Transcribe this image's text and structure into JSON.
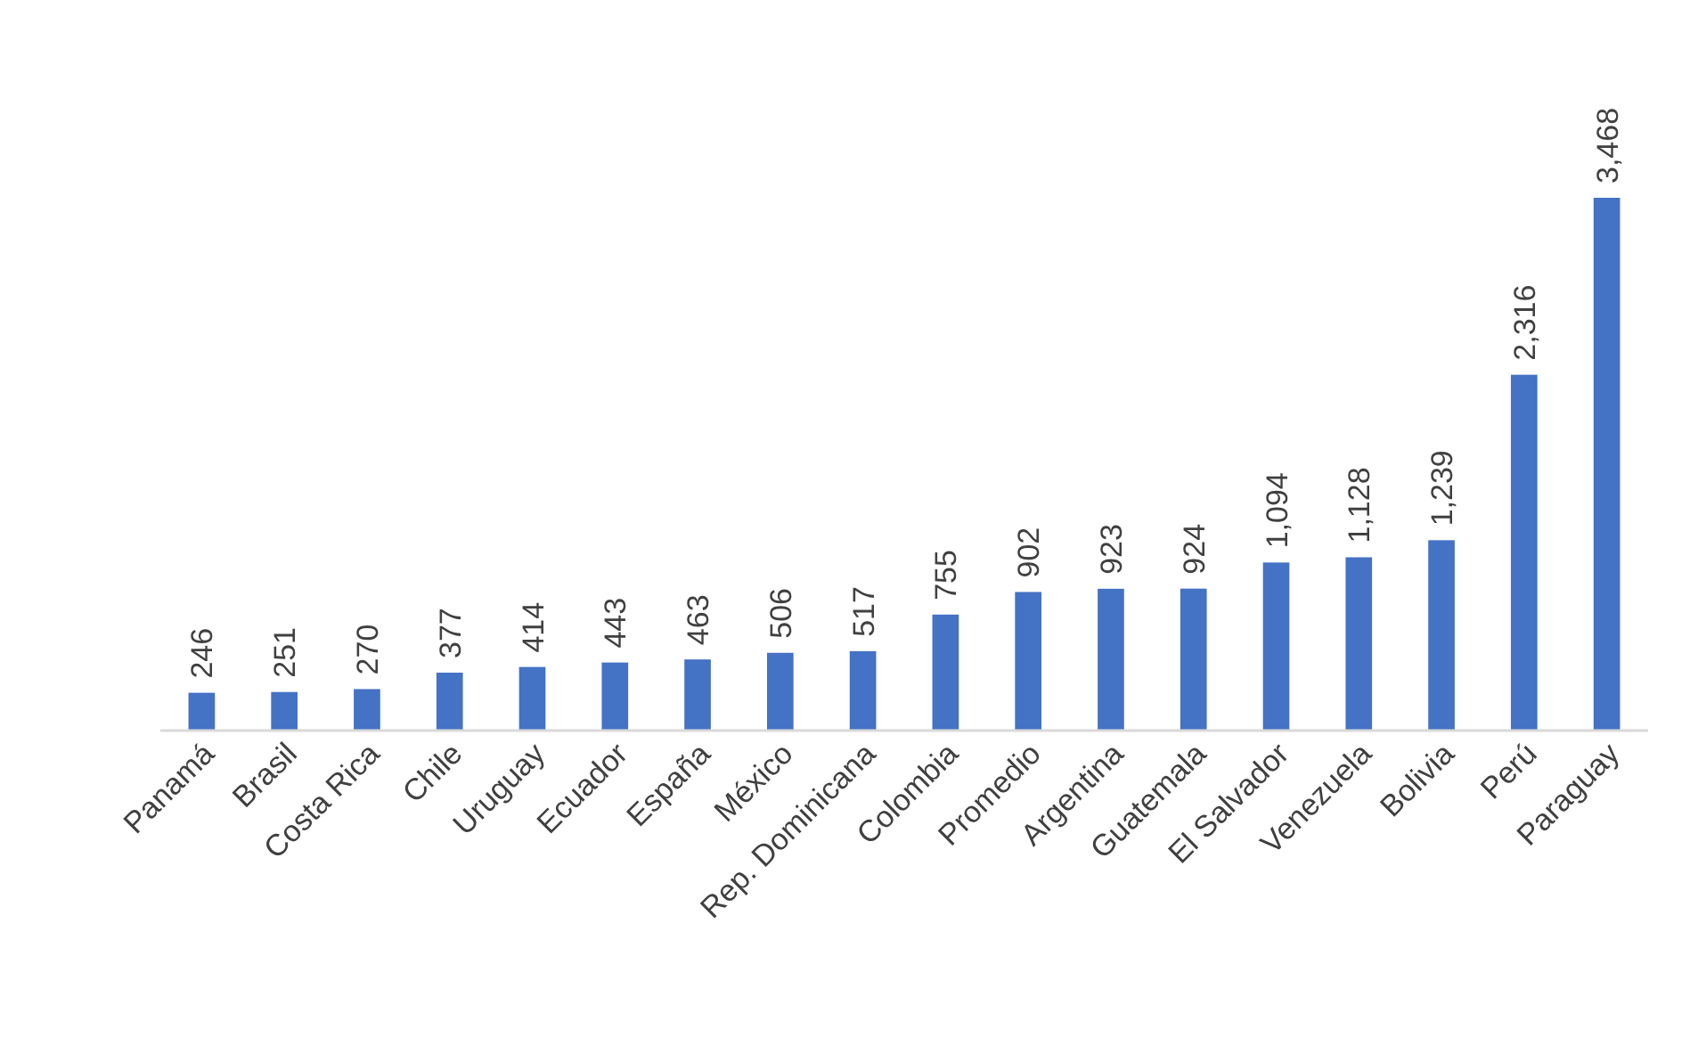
{
  "chart_data": {
    "type": "bar",
    "categories": [
      "Panamá",
      "Brasil",
      "Costa Rica",
      "Chile",
      "Uruguay",
      "Ecuador",
      "España",
      "México",
      "Rep. Dominicana",
      "Colombia",
      "Promedio",
      "Argentina",
      "Guatemala",
      "El Salvador",
      "Venezuela",
      "Bolivia",
      "Perú",
      "Paraguay"
    ],
    "values": [
      246,
      251,
      270,
      377,
      414,
      443,
      463,
      506,
      517,
      755,
      902,
      923,
      924,
      1094,
      1128,
      1239,
      2316,
      3468
    ],
    "value_labels": [
      "246",
      "251",
      "270",
      "377",
      "414",
      "443",
      "463",
      "506",
      "517",
      "755",
      "902",
      "923",
      "924",
      "1,094",
      "1,128",
      "1,239",
      "2,316",
      "3,468"
    ],
    "color": "#4472c4"
  }
}
